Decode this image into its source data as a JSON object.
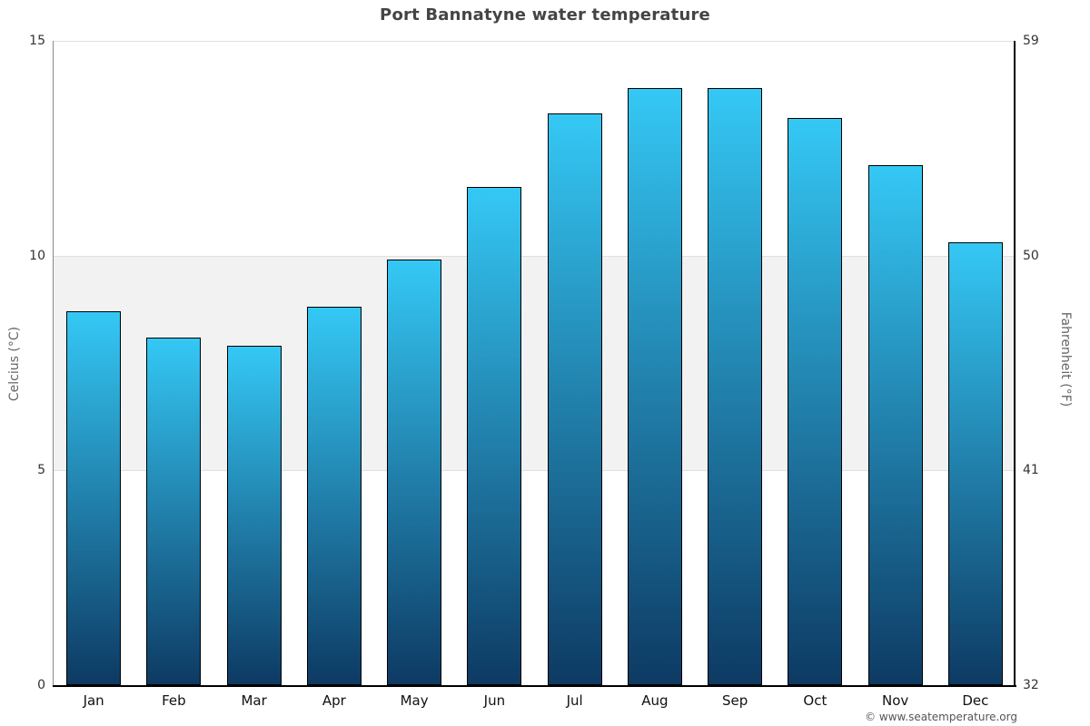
{
  "title": "Port Bannatyne water temperature",
  "footer": {
    "credit": "© www.seatemperature.org"
  },
  "colors": {
    "bar_top": "#35c8f5",
    "bar_bottom": "#0d3a63",
    "bar_border": "#000000",
    "band": "#f2f2f2",
    "gridline": "#e0e0e0",
    "title": "#444444",
    "tick_label": "#333333",
    "axis_title": "#666666"
  },
  "chart_data": {
    "type": "bar",
    "title": "Port Bannatyne water temperature",
    "categories": [
      "Jan",
      "Feb",
      "Mar",
      "Apr",
      "May",
      "Jun",
      "Jul",
      "Aug",
      "Sep",
      "Oct",
      "Nov",
      "Dec"
    ],
    "values": [
      8.7,
      8.1,
      7.9,
      8.8,
      9.9,
      11.6,
      13.3,
      13.9,
      13.9,
      13.2,
      12.1,
      10.3
    ],
    "unit": "°C",
    "ylabel_left": "Celcius (°C)",
    "ylabel_right": "Fahrenheit (°F)",
    "yticks_left": [
      0,
      5,
      10,
      15
    ],
    "yticks_right": [
      32,
      41,
      50,
      59
    ],
    "ylim": [
      0,
      15
    ],
    "ylim_right": [
      32,
      59
    ],
    "grid": true,
    "band_range_celsius": [
      5,
      10
    ],
    "legend": "none"
  }
}
